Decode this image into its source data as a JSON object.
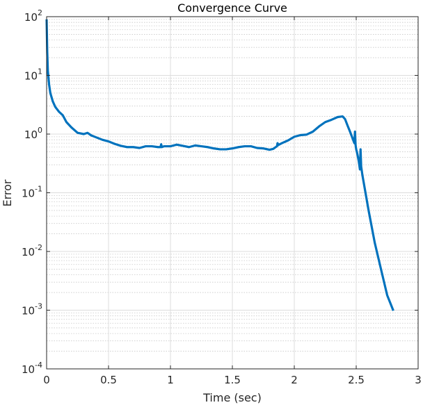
{
  "chart_data": {
    "type": "line",
    "title": "Convergence Curve",
    "xlabel": "Time (sec)",
    "ylabel": "Error",
    "xlim": [
      0,
      3
    ],
    "ylim": [
      0.0001,
      100
    ],
    "yscale": "log",
    "grid": true,
    "minor_grid": true,
    "legend": "none",
    "x_ticks": [
      0,
      0.5,
      1,
      1.5,
      2,
      2.5,
      3
    ],
    "x_tick_labels": [
      "0",
      "0.5",
      "1",
      "1.5",
      "2",
      "2.5",
      "3"
    ],
    "y_ticks": [
      0.0001,
      0.001,
      0.01,
      0.1,
      1,
      10,
      100
    ],
    "y_tick_labels": [
      {
        "base": "10",
        "exp": "-4"
      },
      {
        "base": "10",
        "exp": "-3"
      },
      {
        "base": "10",
        "exp": "-2"
      },
      {
        "base": "10",
        "exp": "-1"
      },
      {
        "base": "10",
        "exp": "0"
      },
      {
        "base": "10",
        "exp": "1"
      },
      {
        "base": "10",
        "exp": "2"
      }
    ],
    "line_color": "#0072bd",
    "series": [
      {
        "x": [
          0,
          0.005,
          0.01,
          0.02,
          0.03,
          0.05,
          0.07,
          0.1,
          0.13,
          0.16,
          0.2,
          0.25,
          0.3,
          0.33,
          0.36,
          0.4,
          0.45,
          0.5,
          0.55,
          0.6,
          0.65,
          0.7,
          0.75,
          0.8,
          0.85,
          0.9,
          0.92,
          0.925,
          0.93,
          0.95,
          1.0,
          1.05,
          1.1,
          1.15,
          1.2,
          1.25,
          1.3,
          1.35,
          1.4,
          1.45,
          1.5,
          1.55,
          1.6,
          1.65,
          1.7,
          1.75,
          1.8,
          1.83,
          1.85,
          1.86,
          1.865,
          1.87,
          1.9,
          1.95,
          2.0,
          2.05,
          2.1,
          2.15,
          2.2,
          2.25,
          2.3,
          2.35,
          2.39,
          2.41,
          2.43,
          2.45,
          2.47,
          2.485,
          2.49,
          2.495,
          2.5,
          2.51,
          2.52,
          2.53,
          2.535,
          2.54,
          2.55,
          2.6,
          2.65,
          2.7,
          2.75,
          2.8
        ],
        "y": [
          90,
          25,
          12,
          7,
          5,
          3.6,
          2.9,
          2.4,
          2.1,
          1.6,
          1.3,
          1.05,
          1.0,
          1.05,
          0.95,
          0.88,
          0.8,
          0.75,
          0.68,
          0.63,
          0.6,
          0.6,
          0.58,
          0.62,
          0.62,
          0.6,
          0.6,
          0.67,
          0.6,
          0.62,
          0.62,
          0.66,
          0.63,
          0.6,
          0.64,
          0.62,
          0.6,
          0.57,
          0.55,
          0.55,
          0.57,
          0.6,
          0.62,
          0.62,
          0.58,
          0.57,
          0.54,
          0.56,
          0.6,
          0.62,
          0.7,
          0.65,
          0.7,
          0.78,
          0.9,
          0.96,
          0.98,
          1.1,
          1.35,
          1.6,
          1.75,
          1.95,
          2.0,
          1.8,
          1.4,
          1.1,
          0.85,
          0.7,
          1.1,
          0.65,
          0.55,
          0.45,
          0.35,
          0.25,
          0.55,
          0.28,
          0.2,
          0.05,
          0.014,
          0.005,
          0.0018,
          0.00098
        ]
      }
    ]
  }
}
